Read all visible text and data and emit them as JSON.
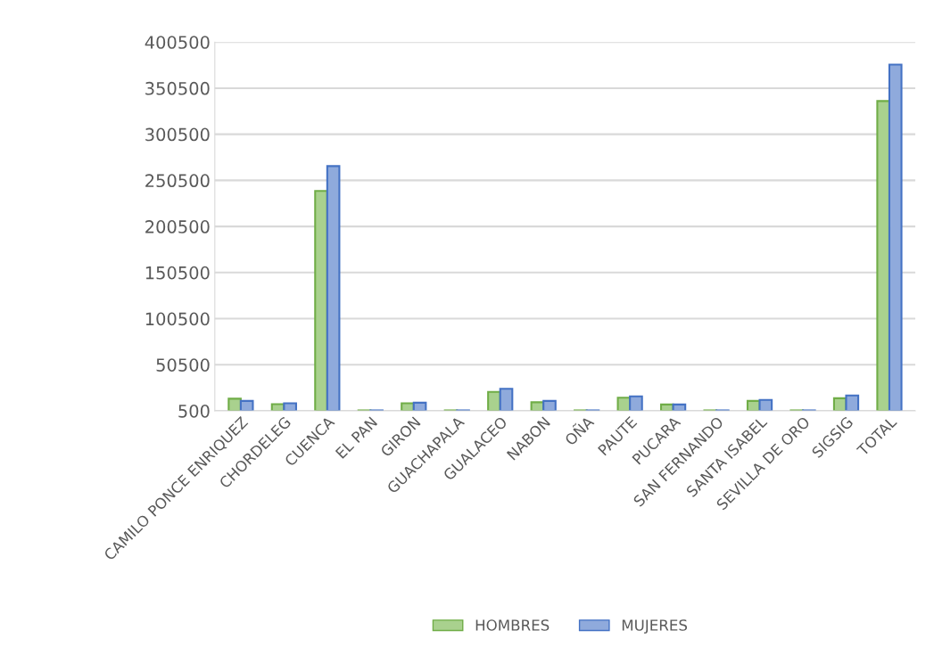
{
  "chart_data": {
    "type": "bar",
    "categories": [
      "CAMILO PONCE ENRIQUEZ",
      "CHORDELEG",
      "CUENCA",
      "EL PAN",
      "GIRON",
      "GUACHAPALA",
      "GUALACEO",
      "NABON",
      "OÑA",
      "PAUTE",
      "PUCARA",
      "SAN FERNANDO",
      "SANTA ISABEL",
      "SEVILLA DE ORO",
      "SIGSIG",
      "TOTAL"
    ],
    "series": [
      {
        "name": "HOMBRES",
        "color": "#a9d18e",
        "values": [
          13700,
          7800,
          239000,
          1000,
          8800,
          1000,
          21100,
          9800,
          1000,
          14700,
          7400,
          1000,
          11300,
          1000,
          14200,
          336500
        ]
      },
      {
        "name": "MUJERES",
        "color": "#8faadc",
        "values": [
          11300,
          8800,
          266000,
          1000,
          9300,
          1000,
          24500,
          11300,
          1000,
          16200,
          7400,
          1000,
          12300,
          1000,
          17200,
          376000
        ]
      }
    ],
    "ylim": [
      500,
      400500
    ],
    "yticks": [
      500,
      50500,
      100500,
      150500,
      200500,
      250500,
      300500,
      350500,
      400500
    ],
    "grid": "y",
    "legend": "bottom"
  }
}
